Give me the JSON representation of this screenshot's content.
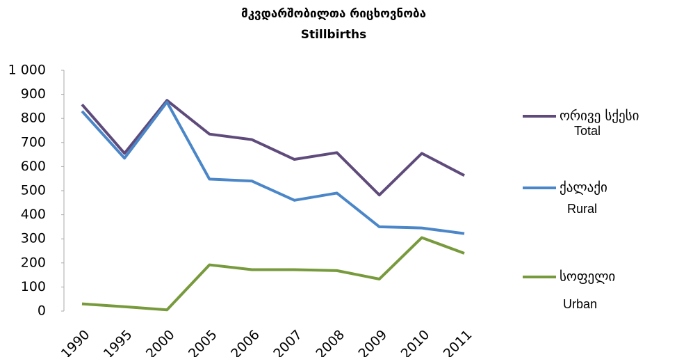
{
  "chart_data": {
    "type": "line",
    "title": "მკვდარშობილთა რიცხოვნობა",
    "subtitle": "Stillbirths",
    "categories": [
      "1990",
      "1995",
      "2000",
      "2005",
      "2006",
      "2007",
      "2008",
      "2009",
      "2010",
      "2011"
    ],
    "series": [
      {
        "name": "ორივე სქესი",
        "name_en": "Total",
        "color": "#5f4b7b",
        "values": [
          858,
          655,
          875,
          735,
          712,
          630,
          658,
          482,
          655,
          563
        ]
      },
      {
        "name": "ქალაქი",
        "name_en": "Rural",
        "color": "#4a86c8",
        "values": [
          830,
          635,
          868,
          548,
          540,
          460,
          490,
          350,
          345,
          322
        ]
      },
      {
        "name": "სოფელი",
        "name_en": "Urban",
        "color": "#779a3c",
        "values": [
          30,
          18,
          5,
          192,
          172,
          172,
          168,
          133,
          305,
          240
        ]
      }
    ],
    "ylim": [
      0,
      1000
    ],
    "yticks": [
      0,
      100,
      200,
      300,
      400,
      500,
      600,
      700,
      800,
      900,
      {
        "value": 1000,
        "label": "1 000"
      }
    ],
    "grid": false,
    "legend": "right"
  }
}
